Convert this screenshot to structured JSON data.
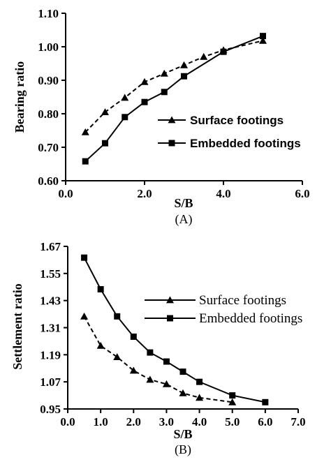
{
  "chart_data": [
    {
      "type": "line",
      "panel_label": "(A)",
      "xlabel": "S/B",
      "ylabel": "Bearing ratio",
      "xlim": [
        0,
        6
      ],
      "ylim": [
        0.6,
        1.1
      ],
      "xticks": [
        "0.0",
        "2.0",
        "4.0",
        "6.0"
      ],
      "yticks": [
        "0.60",
        "0.70",
        "0.80",
        "0.90",
        "1.00",
        "1.10"
      ],
      "legend_position": "center-right",
      "series": [
        {
          "name": "Surface footings",
          "marker": "triangle",
          "line": "dashed",
          "x": [
            0.5,
            1.0,
            1.5,
            2.0,
            2.5,
            3.0,
            3.5,
            4.0,
            5.0
          ],
          "y": [
            0.745,
            0.805,
            0.848,
            0.895,
            0.92,
            0.945,
            0.97,
            0.99,
            1.018
          ]
        },
        {
          "name": "Embedded footings",
          "marker": "square",
          "line": "solid",
          "x": [
            0.5,
            1.0,
            1.5,
            2.0,
            2.5,
            3.0,
            4.0,
            5.0
          ],
          "y": [
            0.658,
            0.712,
            0.79,
            0.835,
            0.865,
            0.912,
            0.985,
            1.032
          ]
        }
      ]
    },
    {
      "type": "line",
      "panel_label": "(B)",
      "xlabel": "S/B",
      "ylabel": "Settlement ratio",
      "xlim": [
        0,
        7
      ],
      "ylim": [
        0.95,
        1.67
      ],
      "xticks": [
        "0.0",
        "1.0",
        "2.0",
        "3.0",
        "4.0",
        "5.0",
        "6.0",
        "7.0"
      ],
      "yticks": [
        "0.95",
        "1.07",
        "1.19",
        "1.31",
        "1.43",
        "1.55",
        "1.67"
      ],
      "legend_position": "top-right",
      "series": [
        {
          "name": "Surface footings",
          "marker": "triangle",
          "line": "dashed",
          "x": [
            0.5,
            1.0,
            1.5,
            2.0,
            2.5,
            3.0,
            3.5,
            4.0,
            5.0
          ],
          "y": [
            1.36,
            1.23,
            1.18,
            1.12,
            1.08,
            1.06,
            1.02,
            1.0,
            0.98
          ]
        },
        {
          "name": "Embedded footings",
          "marker": "square",
          "line": "solid",
          "x": [
            0.5,
            1.0,
            1.5,
            2.0,
            2.5,
            3.0,
            3.5,
            4.0,
            5.0,
            6.0
          ],
          "y": [
            1.62,
            1.48,
            1.36,
            1.27,
            1.2,
            1.16,
            1.115,
            1.07,
            1.01,
            0.98
          ]
        }
      ]
    }
  ]
}
